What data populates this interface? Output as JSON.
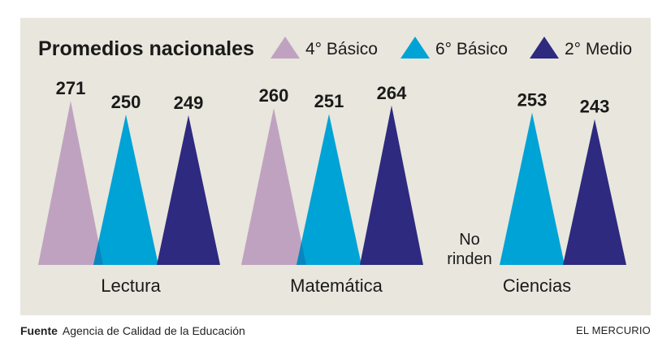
{
  "chart_data": {
    "type": "bar",
    "title": "Promedios nacionales",
    "categories": [
      "Lectura",
      "Matemática",
      "Ciencias"
    ],
    "series": [
      {
        "name": "4° Básico",
        "values": [
          271,
          260,
          null
        ],
        "color": "#bfa2c0"
      },
      {
        "name": "6° Básico",
        "values": [
          250,
          251,
          253
        ],
        "color": "#00a3d6"
      },
      {
        "name": "2° Medio",
        "values": [
          249,
          264,
          243
        ],
        "color": "#2d2a80"
      }
    ],
    "overlap_colors": {
      "4-6": "#0a86bf",
      "6-2": "#1b3d92"
    },
    "missing_note": "No rinden",
    "legend_position": "top",
    "xlabel": "",
    "ylabel": ""
  },
  "footer": {
    "source_label": "Fuente",
    "source_value": "Agencia de Calidad de la Educación",
    "brand": "EL MERCURIO"
  }
}
